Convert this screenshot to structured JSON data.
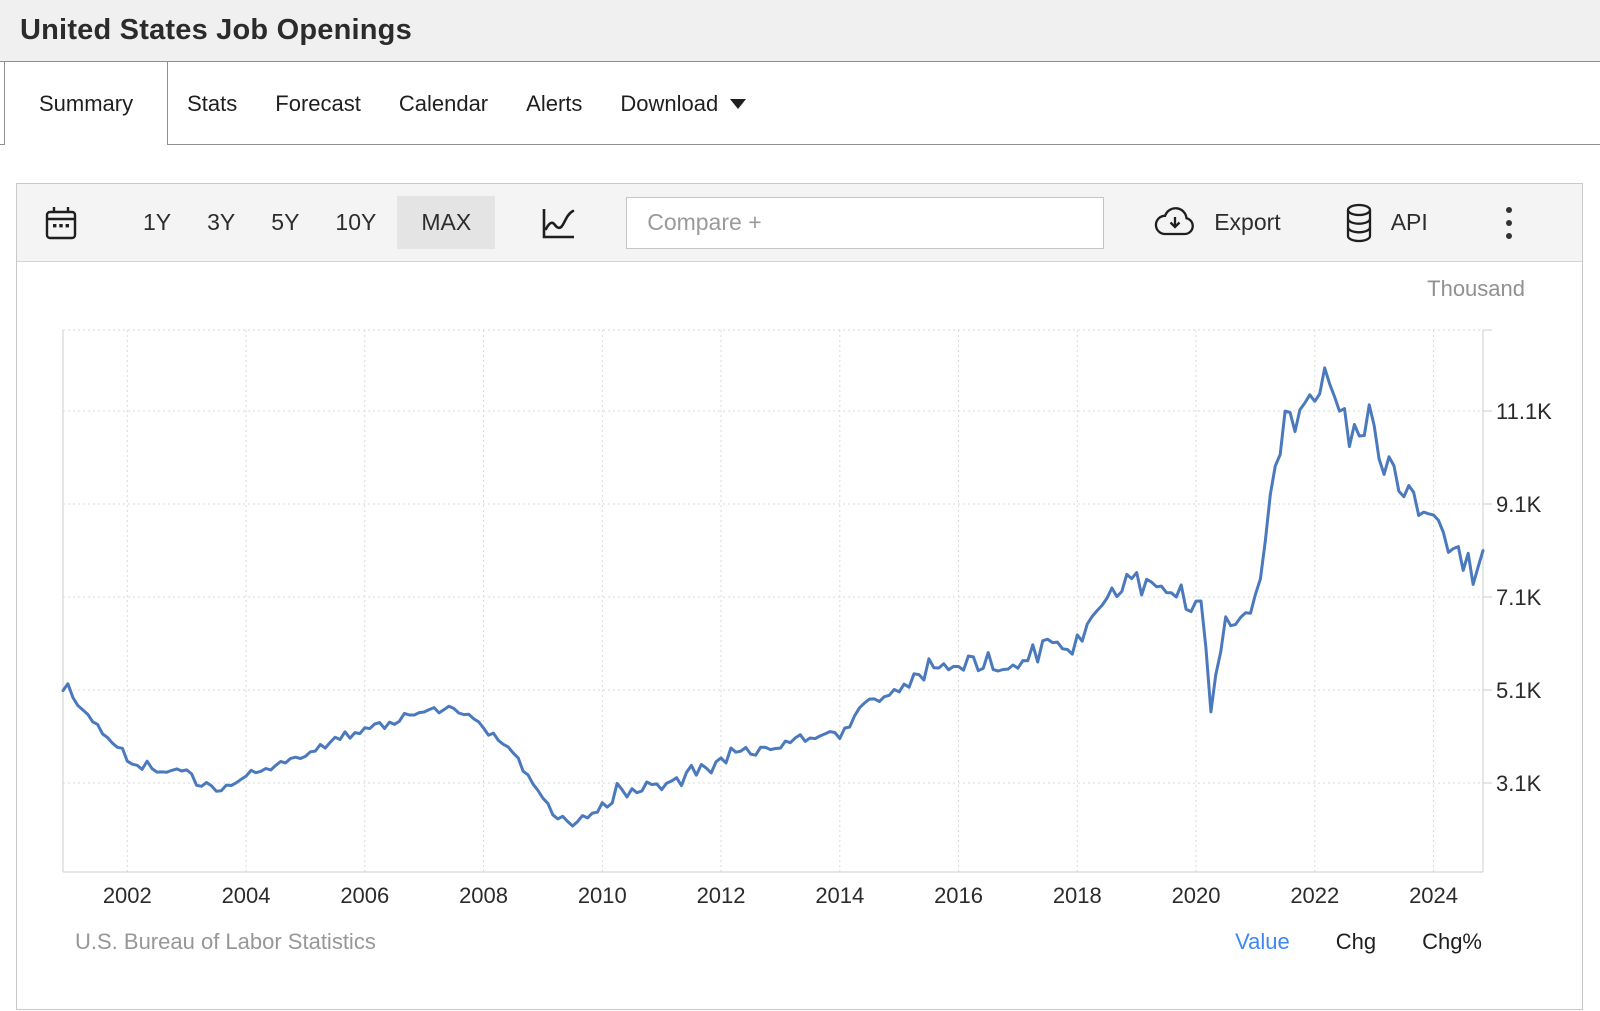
{
  "header": {
    "title": "United States Job Openings"
  },
  "tabs": {
    "items": [
      {
        "label": "Summary",
        "active": true
      },
      {
        "label": "Stats",
        "active": false
      },
      {
        "label": "Forecast",
        "active": false
      },
      {
        "label": "Calendar",
        "active": false
      },
      {
        "label": "Alerts",
        "active": false
      },
      {
        "label": "Download",
        "active": false,
        "has_dropdown": true
      }
    ]
  },
  "toolbar": {
    "ranges": [
      {
        "label": "1Y",
        "active": false
      },
      {
        "label": "3Y",
        "active": false
      },
      {
        "label": "5Y",
        "active": false
      },
      {
        "label": "10Y",
        "active": false
      },
      {
        "label": "MAX",
        "active": true
      }
    ],
    "compare_placeholder": "Compare +",
    "export_label": "Export",
    "api_label": "API"
  },
  "chart_data": {
    "type": "line",
    "title": "United States Job Openings",
    "unit_label": "Thousand",
    "series_name": "Job Openings",
    "frequency": "monthly",
    "start": "2000-12",
    "end": "2024-11",
    "line_color": "#4b79bd",
    "grid": "dotted",
    "legend": "none",
    "x_ticks": [
      2002,
      2004,
      2006,
      2008,
      2010,
      2012,
      2014,
      2016,
      2018,
      2020,
      2022,
      2024
    ],
    "y_ticks": [
      {
        "label": "11.1K",
        "value": 11100
      },
      {
        "label": "9.1K",
        "value": 9100
      },
      {
        "label": "7.1K",
        "value": 7100
      },
      {
        "label": "5.1K",
        "value": 5100
      },
      {
        "label": "3.1K",
        "value": 3100
      }
    ],
    "x_range": [
      2000.917,
      2024.833
    ],
    "y_range": [
      1186,
      12842
    ],
    "values": [
      5088,
      5234,
      4939,
      4767,
      4671,
      4580,
      4417,
      4361,
      4154,
      4079,
      3956,
      3868,
      3846,
      3569,
      3504,
      3481,
      3392,
      3569,
      3409,
      3334,
      3339,
      3332,
      3371,
      3404,
      3358,
      3382,
      3295,
      3051,
      3028,
      3110,
      3042,
      2924,
      2934,
      3055,
      3047,
      3105,
      3179,
      3249,
      3371,
      3322,
      3351,
      3412,
      3379,
      3478,
      3563,
      3532,
      3629,
      3654,
      3627,
      3672,
      3771,
      3785,
      3928,
      3851,
      3975,
      4082,
      4036,
      4201,
      4063,
      4184,
      4162,
      4289,
      4269,
      4368,
      4398,
      4272,
      4409,
      4361,
      4430,
      4596,
      4562,
      4563,
      4614,
      4626,
      4679,
      4722,
      4608,
      4679,
      4750,
      4702,
      4605,
      4570,
      4577,
      4481,
      4417,
      4284,
      4127,
      4174,
      4016,
      3933,
      3872,
      3746,
      3639,
      3354,
      3275,
      3076,
      2938,
      2773,
      2662,
      2417,
      2327,
      2384,
      2271,
      2176,
      2269,
      2399,
      2349,
      2452,
      2471,
      2677,
      2581,
      2669,
      3091,
      2956,
      2799,
      2977,
      2892,
      2929,
      3122,
      3066,
      3081,
      2959,
      3095,
      3143,
      3214,
      3045,
      3324,
      3478,
      3268,
      3498,
      3422,
      3316,
      3558,
      3640,
      3530,
      3853,
      3763,
      3787,
      3864,
      3722,
      3698,
      3870,
      3866,
      3818,
      3841,
      3851,
      4002,
      3967,
      4069,
      4138,
      3994,
      4067,
      4055,
      4110,
      4155,
      4205,
      4187,
      4058,
      4281,
      4304,
      4546,
      4719,
      4821,
      4904,
      4909,
      4853,
      4956,
      4987,
      5110,
      5059,
      5227,
      5160,
      5448,
      5431,
      5316,
      5772,
      5580,
      5573,
      5666,
      5535,
      5607,
      5605,
      5525,
      5832,
      5812,
      5514,
      5568,
      5904,
      5539,
      5508,
      5541,
      5550,
      5637,
      5568,
      5733,
      5730,
      6073,
      5703,
      6158,
      6193,
      6120,
      6130,
      5986,
      5971,
      5870,
      6286,
      6150,
      6516,
      6680,
      6808,
      6920,
      7077,
      7293,
      7109,
      7218,
      7586,
      7495,
      7625,
      7142,
      7480,
      7420,
      7322,
      7335,
      7194,
      7191,
      7100,
      7361,
      6836,
      6787,
      7012,
      7015,
      6011,
      4630,
      5432,
      5930,
      6675,
      6482,
      6511,
      6661,
      6760,
      6752,
      7157,
      7489,
      8302,
      9301,
      9912,
      10164,
      11098,
      11068,
      10656,
      11126,
      11274,
      11448,
      11309,
      11468,
      12027,
      11685,
      11404,
      11096,
      11152,
      10337,
      10810,
      10562,
      10573,
      11234,
      10784,
      10067,
      9736,
      10115,
      9919,
      9373,
      9255,
      9497,
      9350,
      8852,
      8925,
      8889,
      8863,
      8748,
      8488,
      8059,
      8140,
      8184,
      7673,
      8040,
      7372,
      7744,
      8098
    ]
  },
  "footer": {
    "source": "U.S. Bureau of Labor Statistics",
    "modes": [
      {
        "label": "Value",
        "active": true
      },
      {
        "label": "Chg",
        "active": false
      },
      {
        "label": "Chg%",
        "active": false
      }
    ]
  },
  "colors": {
    "accent_blue": "#3f87f5",
    "line_blue": "#4b79bd",
    "grid_gray": "#d9d9d9",
    "axis_gray": "#cccccc"
  }
}
